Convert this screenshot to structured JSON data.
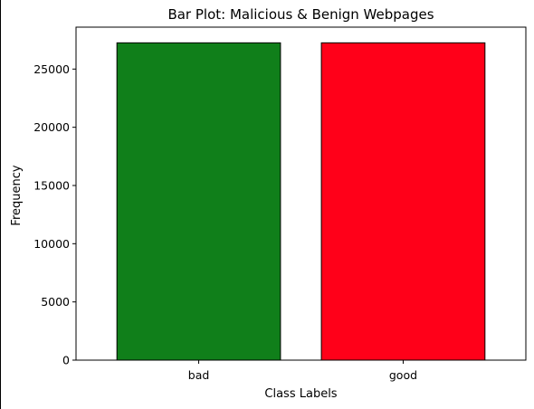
{
  "chart_data": {
    "type": "bar",
    "title": "Bar Plot: Malicious & Benign Webpages",
    "xlabel": "Class Labels",
    "ylabel": "Frequency",
    "categories": [
      "bad",
      "good"
    ],
    "values": [
      27253,
      27253
    ],
    "colors": [
      "#107f1a",
      "#ff0019"
    ],
    "edge_color": "#000000",
    "ylim": [
      0,
      28600
    ],
    "yticks": [
      0,
      5000,
      10000,
      15000,
      20000,
      25000
    ],
    "grid": false,
    "legend": "none"
  }
}
